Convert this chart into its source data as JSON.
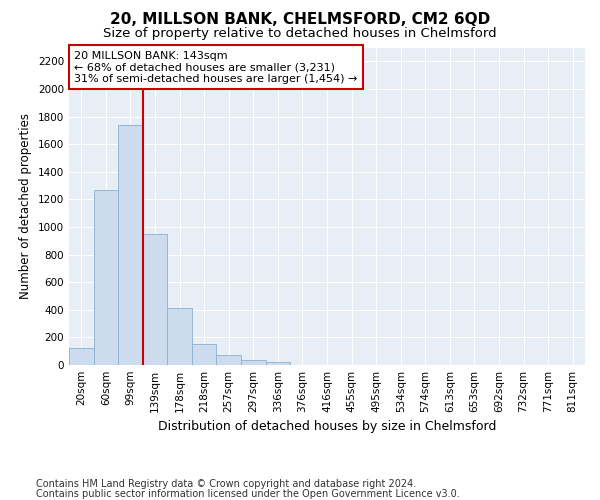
{
  "title": "20, MILLSON BANK, CHELMSFORD, CM2 6QD",
  "subtitle": "Size of property relative to detached houses in Chelmsford",
  "xlabel": "Distribution of detached houses by size in Chelmsford",
  "ylabel": "Number of detached properties",
  "categories": [
    "20sqm",
    "60sqm",
    "99sqm",
    "139sqm",
    "178sqm",
    "218sqm",
    "257sqm",
    "297sqm",
    "336sqm",
    "376sqm",
    "416sqm",
    "455sqm",
    "495sqm",
    "534sqm",
    "574sqm",
    "613sqm",
    "653sqm",
    "692sqm",
    "732sqm",
    "771sqm",
    "811sqm"
  ],
  "values": [
    120,
    1270,
    1740,
    950,
    415,
    150,
    75,
    35,
    20,
    0,
    0,
    0,
    0,
    0,
    0,
    0,
    0,
    0,
    0,
    0,
    0
  ],
  "bar_color": "#ccdcee",
  "bar_edge_color": "#8ab0d0",
  "plot_bg_color": "#e8eef5",
  "ylim": [
    0,
    2300
  ],
  "yticks": [
    0,
    200,
    400,
    600,
    800,
    1000,
    1200,
    1400,
    1600,
    1800,
    2000,
    2200
  ],
  "vline_x_index": 2,
  "vline_color": "#cc0000",
  "annotation_text": "20 MILLSON BANK: 143sqm\n← 68% of detached houses are smaller (3,231)\n31% of semi-detached houses are larger (1,454) →",
  "annotation_box_color": "#cc0000",
  "footer_line1": "Contains HM Land Registry data © Crown copyright and database right 2024.",
  "footer_line2": "Contains public sector information licensed under the Open Government Licence v3.0.",
  "title_fontsize": 11,
  "subtitle_fontsize": 9.5,
  "xlabel_fontsize": 9,
  "ylabel_fontsize": 8.5,
  "tick_fontsize": 7.5,
  "annotation_fontsize": 8,
  "footer_fontsize": 7
}
